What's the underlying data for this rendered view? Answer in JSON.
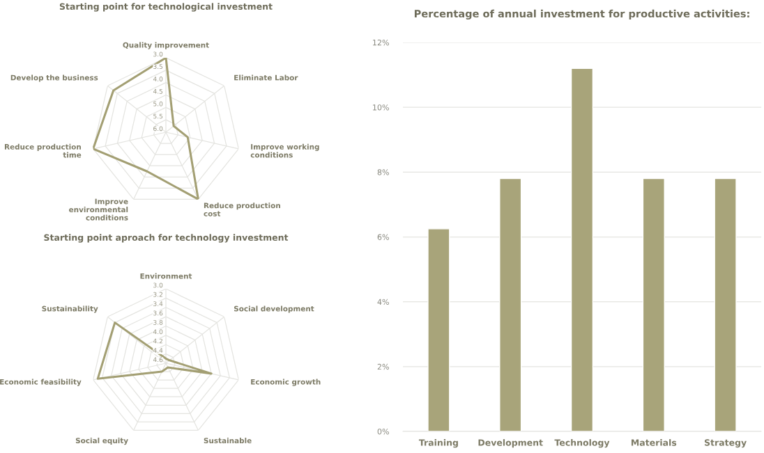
{
  "chart_data": [
    {
      "type": "radar",
      "title": "Starting point for technological investment",
      "categories": [
        "Quality improvement",
        "Eliminate Labor",
        "Improve working\nconditions",
        "Reduce production\ncost",
        "Improve\nenvironmental\nconditions",
        "Reduce production\ntime",
        "Develop the business"
      ],
      "series": [
        {
          "color": "#a39f73",
          "values": [
            3.0,
            5.6,
            5.1,
            3.0,
            4.25,
            3.0,
            3.3
          ]
        }
      ],
      "ylim": [
        6.0,
        3.0
      ],
      "yticks": [
        {
          "value": 3.0,
          "label": "3.0"
        },
        3.5,
        {
          "value": 4.0,
          "label": "4.0"
        },
        4.5,
        {
          "value": 5.0,
          "label": "5.0"
        },
        5.5,
        {
          "value": 6.0,
          "label": "6.0"
        }
      ],
      "grid": true
    },
    {
      "type": "radar",
      "title": "Starting point aproach for technology investment",
      "categories": [
        "Environment",
        "Social development",
        "Economic growth",
        "Sustainable",
        "Social equity",
        "Economic feasibility",
        "Sustainability"
      ],
      "series": [
        {
          "color": "#a39f73",
          "values": [
            4.5,
            4.5,
            3.6,
            4.5,
            4.4,
            3.1,
            3.2
          ]
        }
      ],
      "ylim": [
        4.6,
        3.0
      ],
      "yticks": [
        {
          "value": 3.0,
          "label": "3.0"
        },
        3.2,
        3.4,
        3.6,
        3.8,
        {
          "value": 4.0,
          "label": "4.0"
        },
        4.2,
        4.4,
        4.6
      ],
      "grid": true
    },
    {
      "type": "bar",
      "title": "Percentage of annual investment for productive activities:",
      "categories": [
        "Training",
        "Development",
        "Technology",
        "Materials",
        "Strategy"
      ],
      "values": [
        6.25,
        7.8,
        11.2,
        7.8,
        7.8
      ],
      "color": "#a8a47a",
      "ylim": [
        0,
        12
      ],
      "yticks": [
        {
          "value": 0,
          "label": "0%"
        },
        {
          "value": 2,
          "label": "2%"
        },
        {
          "value": 4,
          "label": "4%"
        },
        {
          "value": 6,
          "label": "6%"
        },
        {
          "value": 8,
          "label": "8%"
        },
        {
          "value": 10,
          "label": "10%"
        },
        {
          "value": 12,
          "label": "12%"
        }
      ],
      "grid": "y"
    }
  ]
}
